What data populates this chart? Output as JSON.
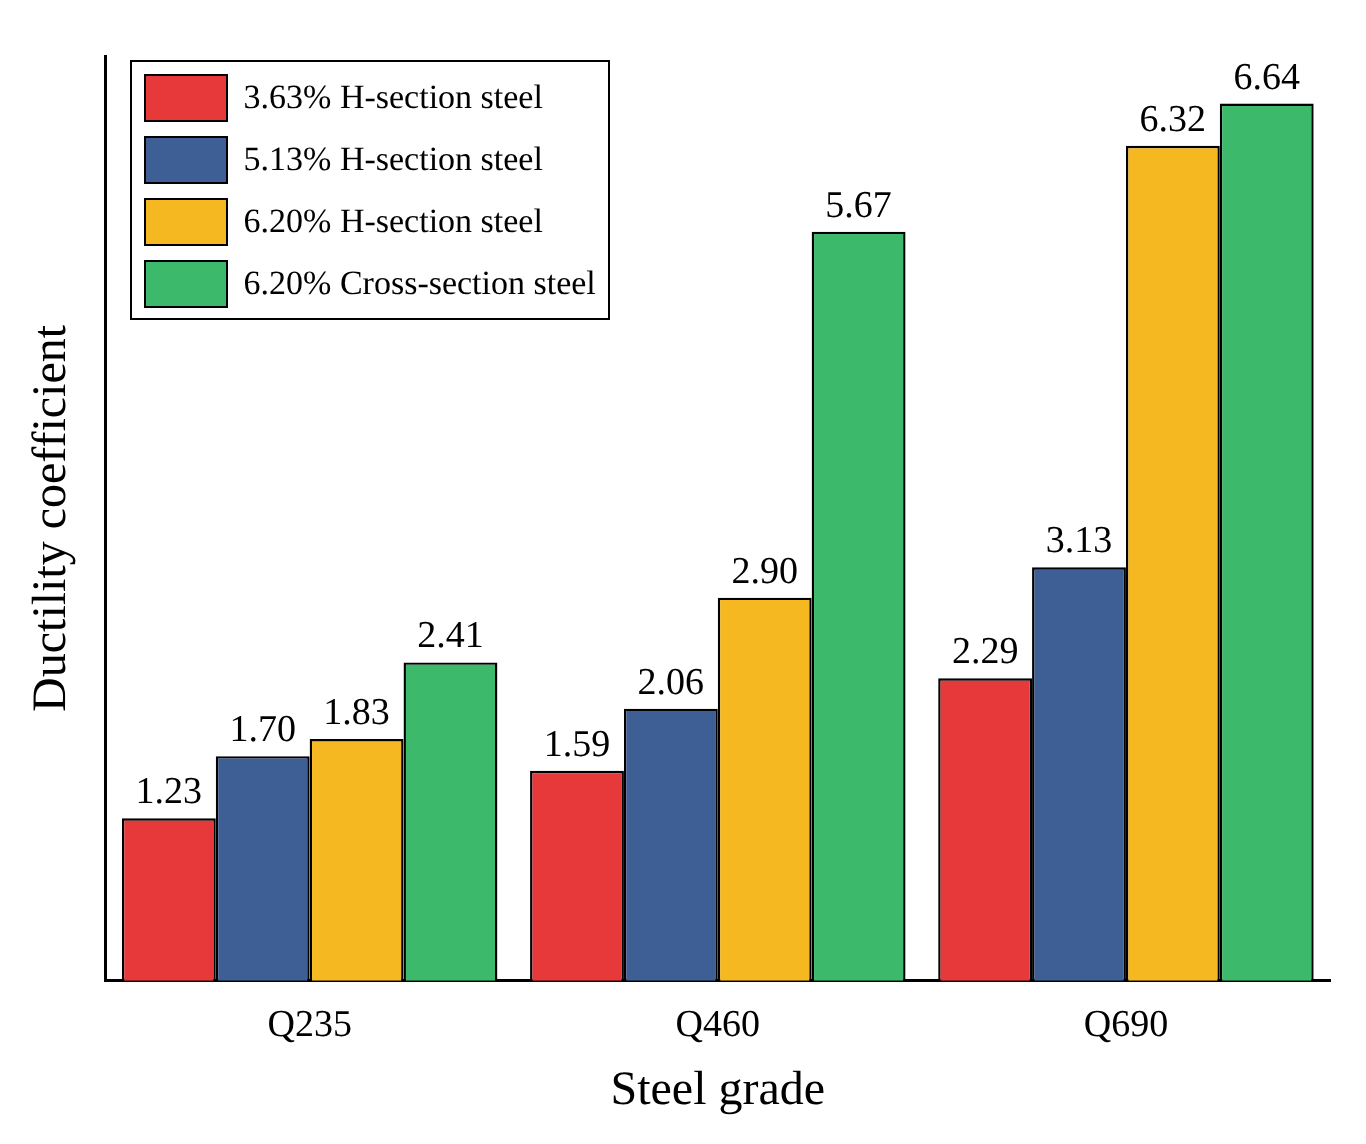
{
  "chart_data": {
    "type": "bar",
    "xlabel": "Steel grade",
    "ylabel": "Ductility coefficient",
    "categories": [
      "Q235",
      "Q460",
      "Q690"
    ],
    "series": [
      {
        "name": "3.63% H-section steel",
        "color": "#e8393a",
        "values": [
          1.23,
          1.59,
          2.29
        ],
        "value_labels": [
          "1.23",
          "1.59",
          "2.29"
        ]
      },
      {
        "name": "5.13% H-section steel",
        "color": "#3d5f96",
        "values": [
          1.7,
          2.06,
          3.13
        ],
        "value_labels": [
          "1.70",
          "2.06",
          "3.13"
        ]
      },
      {
        "name": "6.20% H-section steel",
        "color": "#f5b820",
        "values": [
          1.83,
          2.9,
          6.32
        ],
        "value_labels": [
          "1.83",
          "2.90",
          "6.32"
        ]
      },
      {
        "name": "6.20% Cross-section steel",
        "color": "#3cb96a",
        "values": [
          2.41,
          5.67,
          6.64
        ],
        "value_labels": [
          "2.41",
          "5.67",
          "6.64"
        ]
      }
    ],
    "legend": "top left",
    "tick_labels": "x",
    "grid": false
  }
}
